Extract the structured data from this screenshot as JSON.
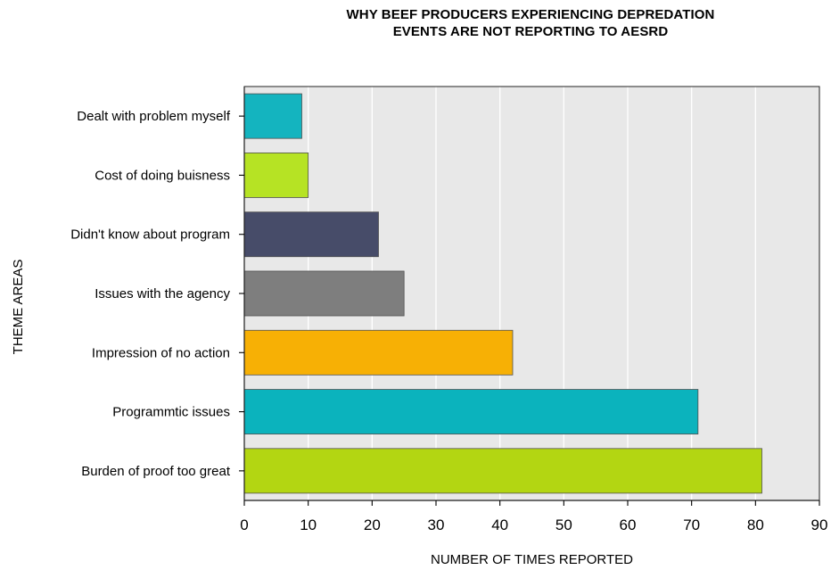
{
  "chart_data": {
    "type": "bar",
    "orientation": "horizontal",
    "title_lines": [
      "WHY BEEF PRODUCERS EXPERIENCING DEPREDATION",
      "EVENTS ARE NOT REPORTING TO AESRD"
    ],
    "xlabel": "NUMBER OF TIMES REPORTED",
    "ylabel": "THEME AREAS",
    "xlim": [
      0,
      90
    ],
    "xticks": [
      0,
      10,
      20,
      30,
      40,
      50,
      60,
      70,
      80,
      90
    ],
    "grid": true,
    "categories": [
      "Dealt with problem myself",
      "Cost of doing buisness",
      "Didn't know about program",
      "Issues with the agency",
      "Impression of no action ",
      "Programmtic issues",
      "Burden of proof too great"
    ],
    "values": [
      9,
      10,
      21,
      25,
      42,
      71,
      81
    ],
    "colors": [
      "#14b4bf",
      "#b6e324",
      "#474c69",
      "#7e7e7e",
      "#f7b005",
      "#0bb3bd",
      "#b3d612"
    ],
    "plot_background": "#e8e8e8",
    "gridline_color": "#ffffff"
  }
}
